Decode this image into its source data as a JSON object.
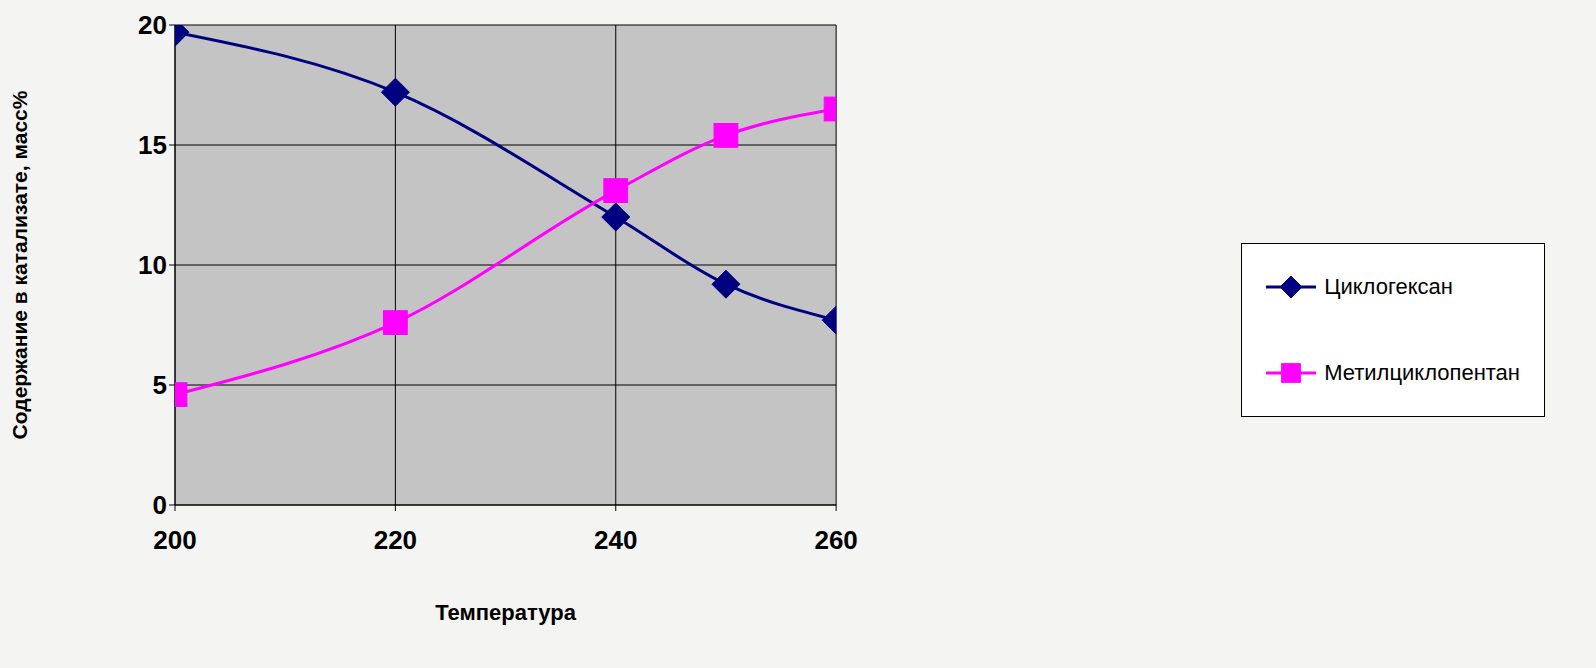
{
  "chart_data": {
    "type": "line",
    "x_label": "Температура",
    "y_label": "Содержание в катализате, масс%",
    "x": [
      200,
      220,
      240,
      250,
      260
    ],
    "series": [
      {
        "name": "Циклогексан",
        "color": "#000080",
        "marker": "diamond",
        "values": [
          19.7,
          17.2,
          12.0,
          9.2,
          7.7
        ]
      },
      {
        "name": "Метилциклопентан",
        "color": "#ff00ff",
        "marker": "square",
        "values": [
          4.6,
          7.6,
          13.1,
          15.4,
          16.5
        ]
      }
    ],
    "xlim": [
      200,
      260
    ],
    "xticks": [
      200,
      220,
      240,
      260
    ],
    "ylim": [
      0,
      20
    ],
    "yticks": [
      0,
      5,
      10,
      15,
      20
    ],
    "grid": true,
    "legend": "right"
  }
}
